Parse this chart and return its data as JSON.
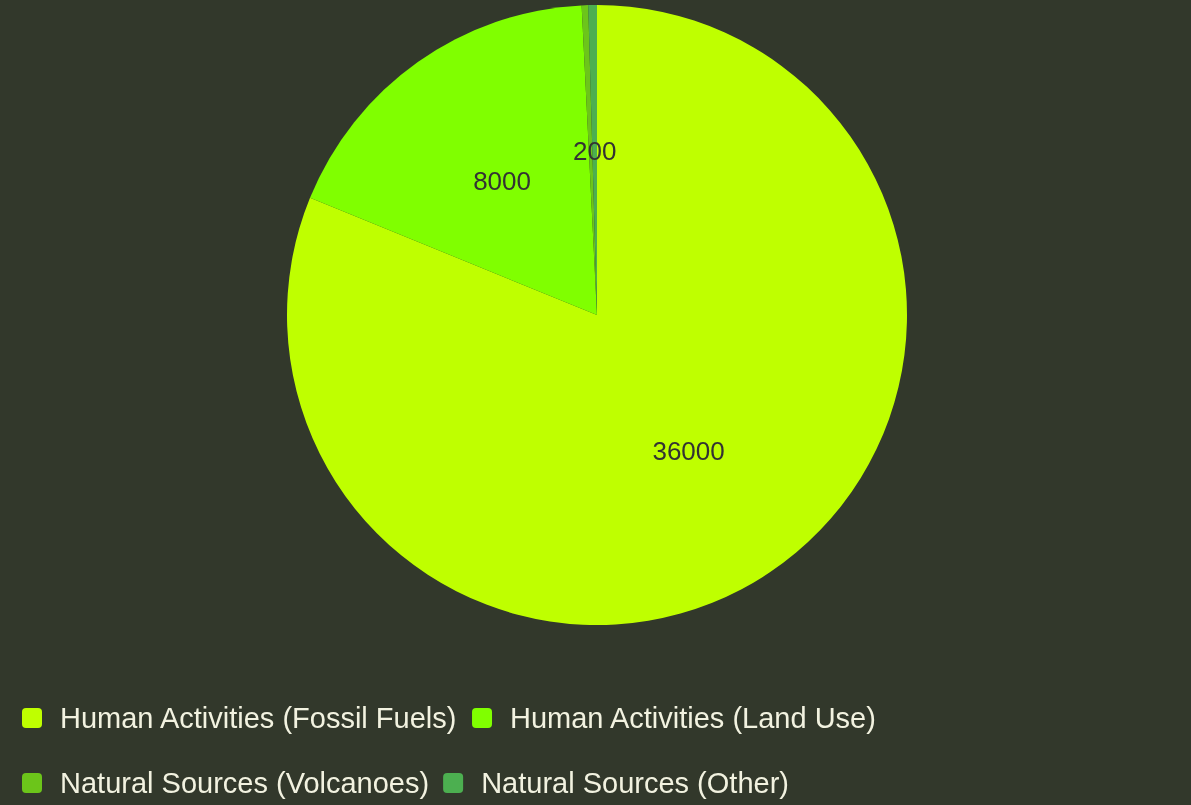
{
  "chart_data": {
    "type": "pie",
    "categories": [
      "Human Activities (Fossil Fuels)",
      "Human Activities (Land Use)",
      "Natural Sources (Volcanoes)",
      "Natural Sources (Other)"
    ],
    "values": [
      36000,
      8000,
      150,
      200
    ],
    "value_labels": [
      "36000",
      "8000",
      null,
      "200"
    ],
    "colors": [
      "#bfff00",
      "#80ff00",
      "#6cc51a",
      "#4caf50"
    ],
    "legend": "bottom"
  }
}
